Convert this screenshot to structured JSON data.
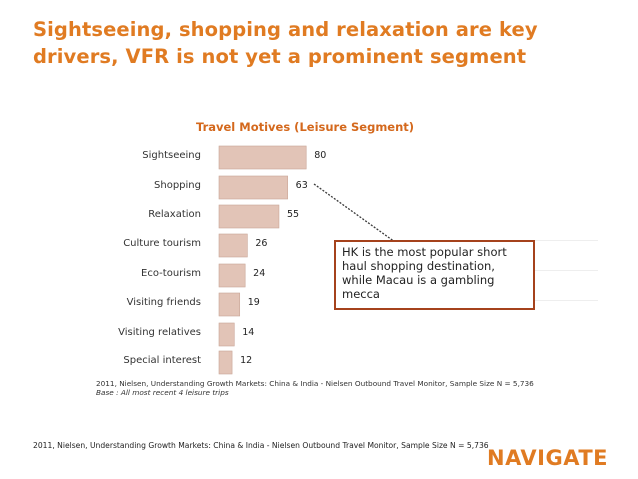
{
  "slide": {
    "title": "Sightseeing, shopping and relaxation are key drivers, VFR is not yet a prominent segment",
    "footer_source": "2011, Nielsen, Understanding Growth Markets: China & India - Nielsen Outbound Travel Monitor, Sample Size N = 5,736",
    "logo_text": "NAVIGATE"
  },
  "chart_data": {
    "type": "bar",
    "orientation": "horizontal",
    "title": "Travel Motives (Leisure Segment)",
    "categories": [
      "Sightseeing",
      "Shopping",
      "Relaxation",
      "Culture tourism",
      "Eco-tourism",
      "Visiting friends",
      "Visiting relatives",
      "Special interest"
    ],
    "values": [
      80,
      63,
      55,
      26,
      24,
      19,
      14,
      12
    ],
    "data_labels": [
      "80",
      "63",
      "55",
      "26",
      "24",
      "19",
      "14",
      "12"
    ],
    "bar_color": "#e2c4b7",
    "bar_border_color": "#c9a596",
    "grid": false,
    "source_note": "2011, Nielsen, Understanding Growth Markets: China & India - Nielsen Outbound Travel Monitor, Sample Size N = 5,736",
    "base_note": "Base : All most recent 4 leisure trips"
  },
  "callout": {
    "text": "HK is the most popular short haul shopping destination, while Macau is a gambling mecca",
    "border_color": "#a5421c"
  },
  "colors": {
    "title": "#e07b22",
    "chart_title": "#d4681c",
    "logo": "#e07b22"
  }
}
